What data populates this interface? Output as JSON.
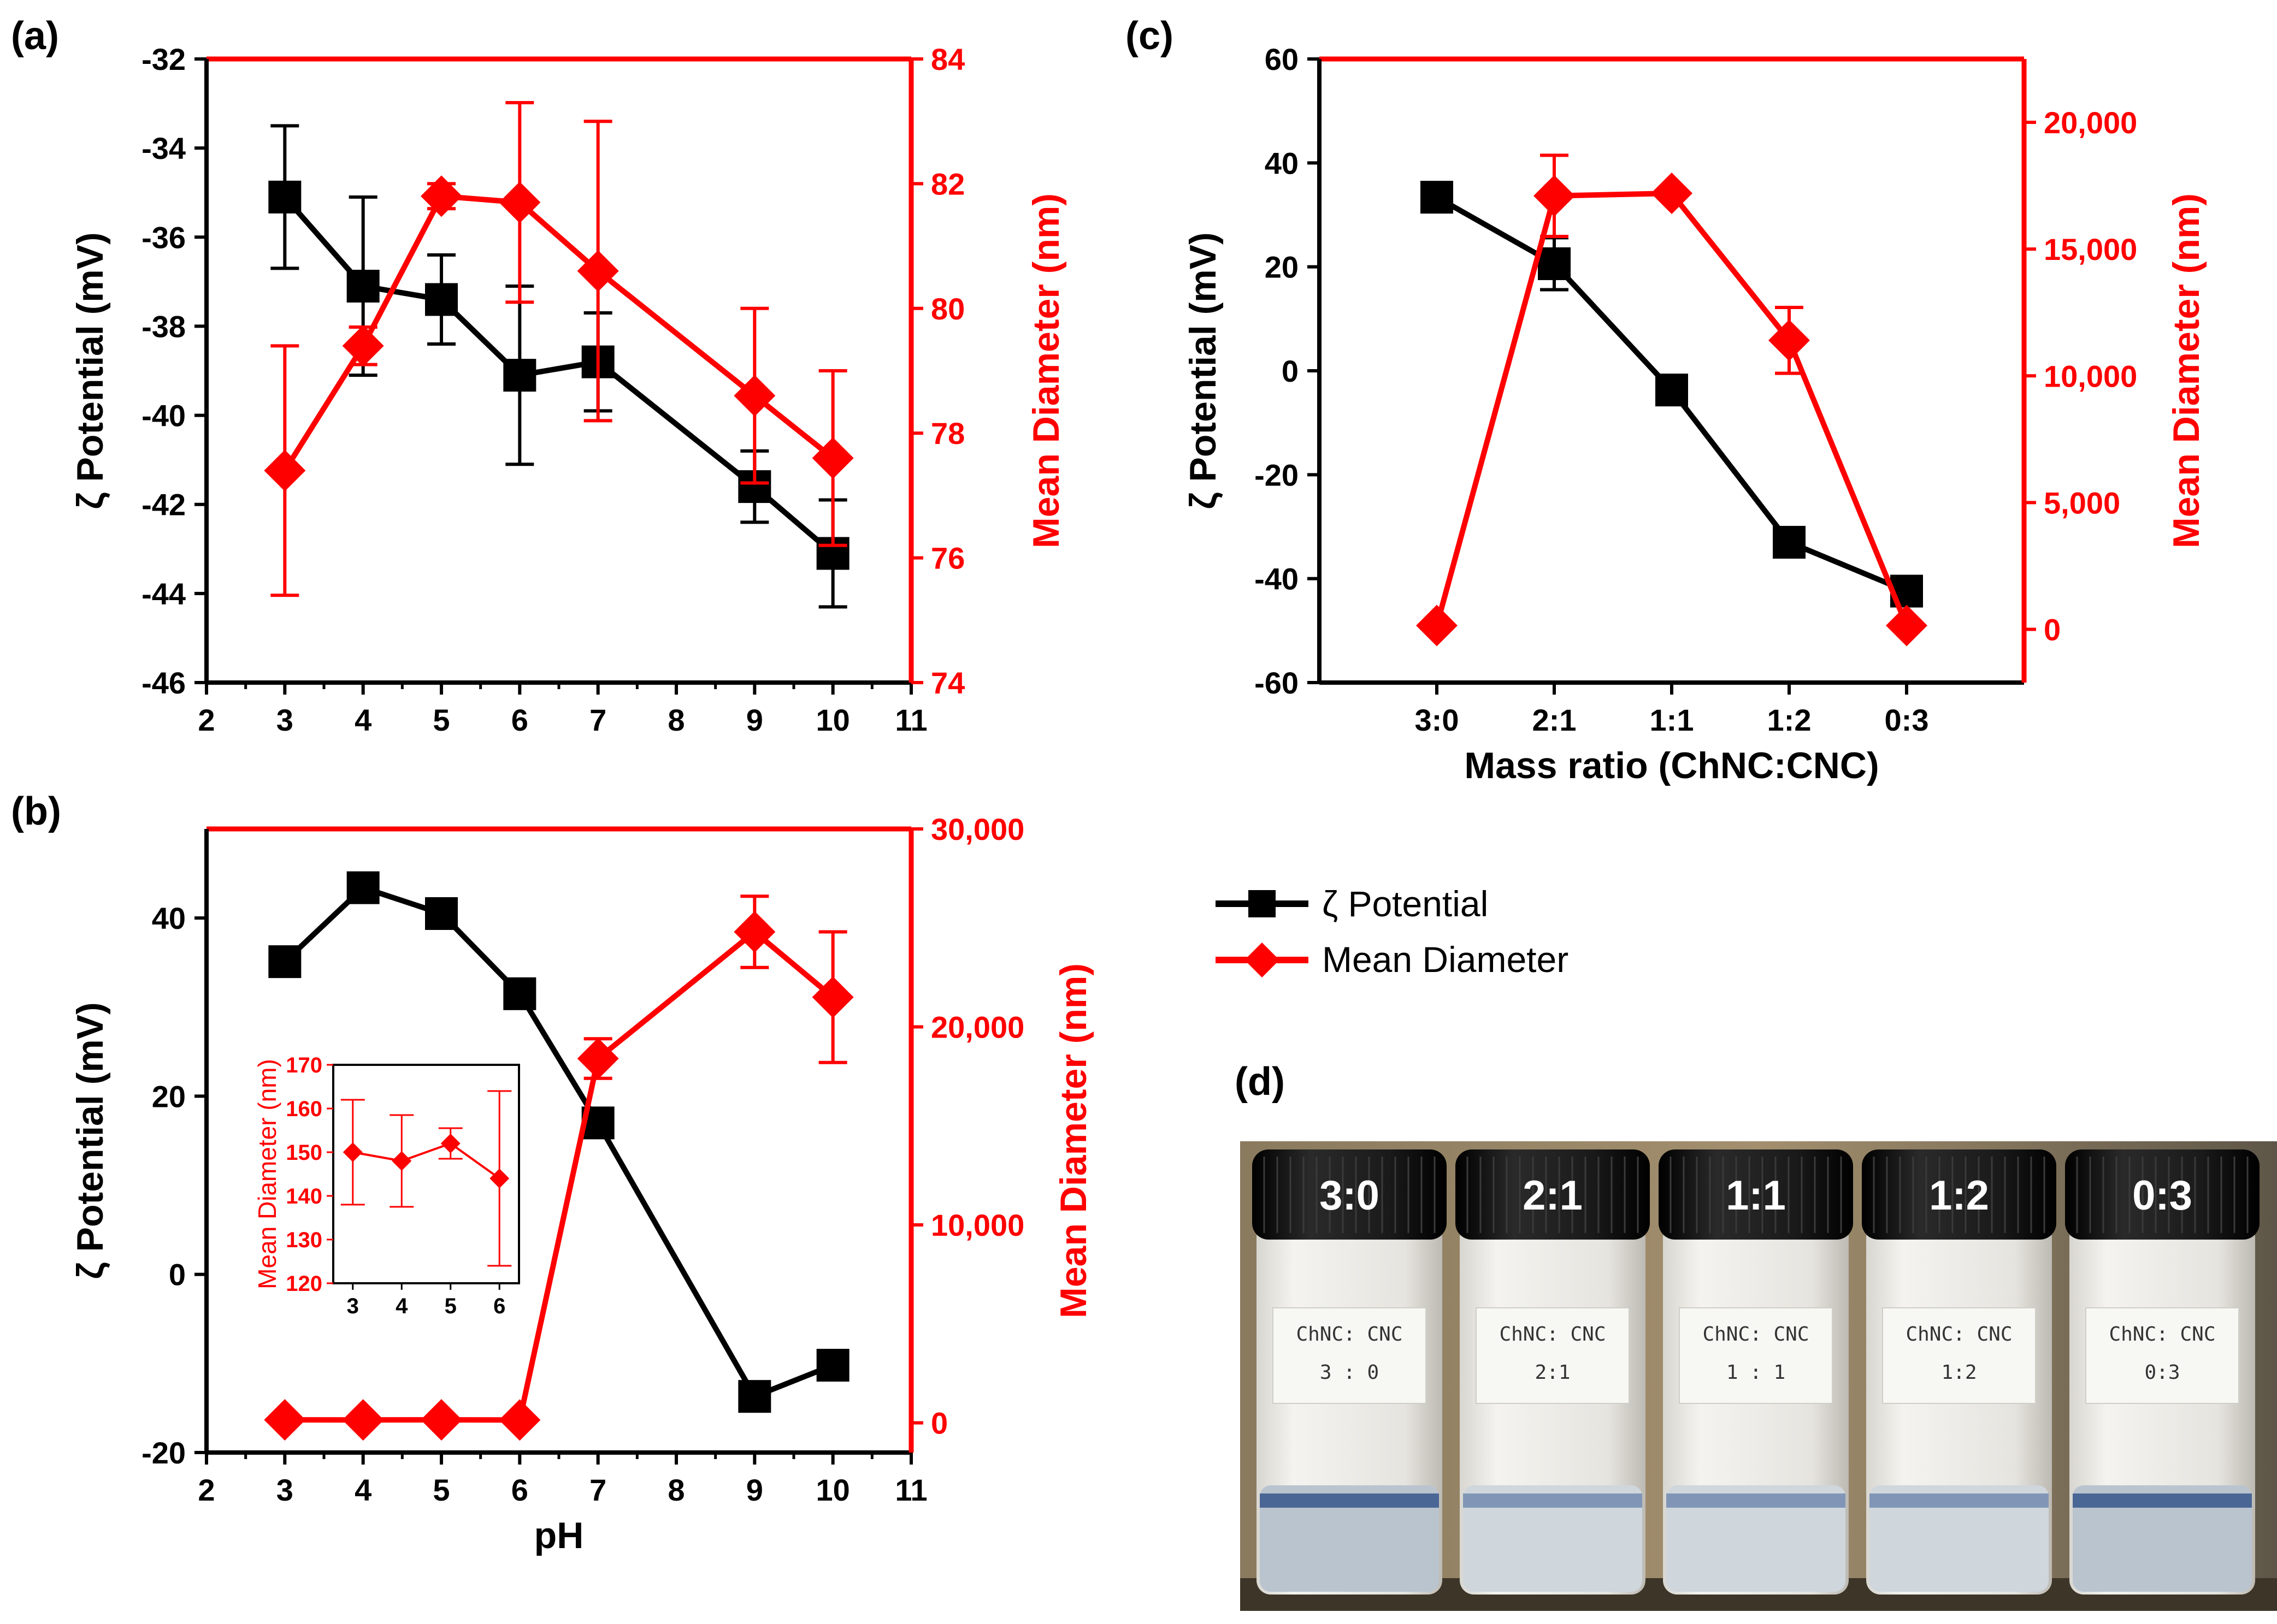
{
  "colors": {
    "zeta": "#000000",
    "diameter": "#ff0000"
  },
  "legend": {
    "zeta_label": "ζ Potential",
    "diameter_label": "Mean Diameter"
  },
  "chart_data": [
    {
      "panel": "(a)",
      "type": "line",
      "x": [
        3,
        4,
        5,
        6,
        7,
        9,
        10
      ],
      "xlim": [
        2,
        11
      ],
      "xticks": [
        2,
        3,
        4,
        5,
        6,
        7,
        8,
        9,
        10,
        11
      ],
      "xlabel": "",
      "ylabel_left": "ζ Potential (mV)",
      "ylabel_right": "Mean Diameter (nm)",
      "ylim_left": [
        -46,
        -32
      ],
      "yticks_left": [
        -46,
        -44,
        -42,
        -40,
        -38,
        -36,
        -34,
        -32
      ],
      "ylim_right": [
        74,
        84
      ],
      "yticks_right": [
        74,
        76,
        78,
        80,
        82,
        84
      ],
      "series": [
        {
          "name": "ζ Potential",
          "axis": "left",
          "marker": "square",
          "values": [
            -35.1,
            -37.1,
            -37.4,
            -39.1,
            -38.8,
            -41.6,
            -43.1
          ],
          "errors": [
            1.6,
            2.0,
            1.0,
            2.0,
            1.1,
            0.8,
            1.2
          ]
        },
        {
          "name": "Mean Diameter",
          "axis": "right",
          "marker": "diamond",
          "values": [
            77.4,
            79.4,
            81.8,
            81.7,
            80.6,
            78.6,
            77.6
          ],
          "errors": [
            2.0,
            0.3,
            0.2,
            1.6,
            2.4,
            1.4,
            1.4
          ]
        }
      ]
    },
    {
      "panel": "(b)",
      "type": "line",
      "x": [
        3,
        4,
        5,
        6,
        7,
        9,
        10
      ],
      "xlim": [
        2,
        11
      ],
      "xticks": [
        2,
        3,
        4,
        5,
        6,
        7,
        8,
        9,
        10,
        11
      ],
      "xlabel": "pH",
      "ylabel_left": "ζ Potential (mV)",
      "ylabel_right": "Mean Diameter (nm)",
      "ylim_left": [
        -20,
        50
      ],
      "yticks_left": [
        -20,
        0,
        20,
        40
      ],
      "ylim_right": [
        -1500,
        30000
      ],
      "yticks_right": [
        0,
        10000,
        20000,
        30000
      ],
      "ytick_labels_right": [
        "0",
        "10,000",
        "20,000",
        "30,000"
      ],
      "series": [
        {
          "name": "ζ Potential",
          "axis": "left",
          "marker": "square",
          "values": [
            35.1,
            43.4,
            40.5,
            31.5,
            17.0,
            -13.7,
            -10.2
          ],
          "errors": [
            0,
            0,
            0,
            0,
            0,
            0,
            0
          ]
        },
        {
          "name": "Mean Diameter",
          "axis": "right",
          "marker": "diamond",
          "values": [
            150,
            148,
            152,
            144,
            18400,
            24800,
            21500
          ],
          "errors": [
            0,
            0,
            0,
            0,
            1000,
            1800,
            3300
          ]
        }
      ],
      "inset": {
        "x": [
          3,
          4,
          5,
          6
        ],
        "xlim": [
          2.6,
          6.4
        ],
        "xticks": [
          3,
          4,
          5,
          6
        ],
        "ylabel": "Mean Diameter (nm)",
        "ylim": [
          120,
          170
        ],
        "yticks": [
          120,
          130,
          140,
          150,
          160,
          170
        ],
        "values": [
          150,
          148,
          152,
          144
        ],
        "errors": [
          12,
          10.5,
          3.5,
          20
        ]
      }
    },
    {
      "panel": "(c)",
      "type": "line",
      "categories": [
        "3:0",
        "2:1",
        "1:1",
        "1:2",
        "0:3"
      ],
      "xlabel": "Mass ratio (ChNC:CNC)",
      "ylabel_left": "ζ Potential (mV)",
      "ylabel_right": "Mean Diameter (nm)",
      "ylim_left": [
        -60,
        60
      ],
      "yticks_left": [
        -60,
        -40,
        -20,
        0,
        20,
        40,
        60
      ],
      "ylim_right": [
        -2100,
        22500
      ],
      "yticks_right": [
        0,
        5000,
        10000,
        15000,
        20000
      ],
      "ytick_labels_right": [
        "0",
        "5,000",
        "10,000",
        "15,000",
        "20,000"
      ],
      "series": [
        {
          "name": "ζ Potential",
          "axis": "left",
          "marker": "square",
          "values": [
            33.4,
            20.6,
            -3.7,
            -33.0,
            -42.4
          ],
          "errors": [
            0,
            5,
            0,
            0,
            0
          ]
        },
        {
          "name": "Mean Diameter",
          "axis": "right",
          "marker": "diamond",
          "values": [
            150,
            17100,
            17200,
            11400,
            150
          ],
          "errors": [
            0,
            1600,
            0,
            1300,
            0
          ]
        }
      ]
    }
  ],
  "photo": {
    "panel": "(d)",
    "caps": [
      "3:0",
      "2:1",
      "1:1",
      "1:2",
      "0:3"
    ],
    "tags": [
      {
        "line1": "ChNC: CNC",
        "line2": "3 : 0"
      },
      {
        "line1": "ChNC: CNC",
        "line2": "2:1"
      },
      {
        "line1": "ChNC: CNC",
        "line2": "1 : 1"
      },
      {
        "line1": "ChNC: CNC",
        "line2": "1:2"
      },
      {
        "line1": "ChNC: CNC",
        "line2": "0:3"
      }
    ]
  }
}
